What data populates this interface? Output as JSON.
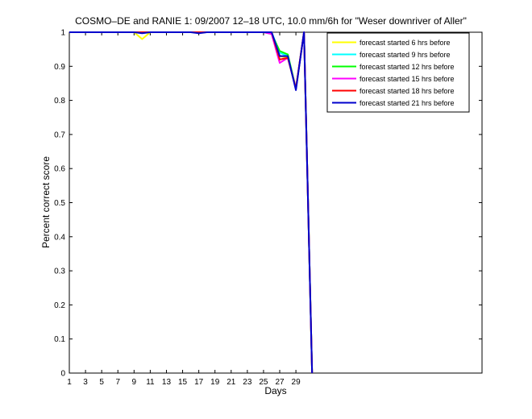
{
  "chart_data": {
    "type": "line",
    "title": "COSMO–DE and RANIE 1: 09/2007 12–18 UTC, 10.0 mm/6h for \"Weser downriver of Aller\"",
    "xlabel": "Days",
    "ylabel": "Percent correct score",
    "xlim": [
      1,
      52
    ],
    "ylim": [
      0,
      1
    ],
    "xticks": [
      1,
      3,
      5,
      7,
      9,
      11,
      13,
      15,
      17,
      19,
      21,
      23,
      25,
      27,
      29
    ],
    "yticks": [
      0,
      0.1,
      0.2,
      0.3,
      0.4,
      0.5,
      0.6,
      0.7,
      0.8,
      0.9,
      1
    ],
    "legend_position": "top-right",
    "grid": false,
    "series": [
      {
        "name": "forecast started 6 hrs before",
        "color": "#ffff00",
        "x": [
          1,
          2,
          3,
          4,
          5,
          6,
          7,
          8,
          9,
          10,
          11,
          12,
          13,
          14,
          15,
          16,
          17,
          18,
          19,
          20,
          21,
          22,
          23,
          24,
          25,
          26,
          27,
          28,
          29,
          30,
          31
        ],
        "y": [
          1,
          1,
          1,
          1,
          1,
          1,
          1,
          1,
          1,
          0.98,
          1,
          1,
          1,
          1,
          1,
          1,
          1,
          1,
          1,
          1,
          1,
          1,
          1,
          1,
          1,
          1,
          0.93,
          0.925,
          0.835,
          1,
          0
        ]
      },
      {
        "name": "forecast started 9 hrs before",
        "color": "#00ffff",
        "x": [
          1,
          2,
          3,
          4,
          5,
          6,
          7,
          8,
          9,
          10,
          11,
          12,
          13,
          14,
          15,
          16,
          17,
          18,
          19,
          20,
          21,
          22,
          23,
          24,
          25,
          26,
          27,
          28,
          29,
          30,
          31
        ],
        "y": [
          1,
          1,
          1,
          1,
          1,
          1,
          1,
          1,
          1,
          1,
          1,
          1,
          1,
          1,
          1,
          1,
          1,
          1,
          1,
          1,
          1,
          1,
          1,
          1,
          1,
          1,
          0.94,
          0.93,
          0.835,
          1,
          0
        ]
      },
      {
        "name": "forecast started 12 hrs before",
        "color": "#00ff00",
        "x": [
          1,
          2,
          3,
          4,
          5,
          6,
          7,
          8,
          9,
          10,
          11,
          12,
          13,
          14,
          15,
          16,
          17,
          18,
          19,
          20,
          21,
          22,
          23,
          24,
          25,
          26,
          27,
          28,
          29,
          30,
          31
        ],
        "y": [
          1,
          1,
          1,
          1,
          1,
          1,
          1,
          1,
          1,
          1,
          1,
          1,
          1,
          1,
          1,
          1,
          1,
          1,
          1,
          1,
          1,
          1,
          1,
          1,
          1,
          0.995,
          0.945,
          0.935,
          0.835,
          1,
          0
        ]
      },
      {
        "name": "forecast started 15 hrs before",
        "color": "#ff00ff",
        "x": [
          1,
          2,
          3,
          4,
          5,
          6,
          7,
          8,
          9,
          10,
          11,
          12,
          13,
          14,
          15,
          16,
          17,
          18,
          19,
          20,
          21,
          22,
          23,
          24,
          25,
          26,
          27,
          28,
          29,
          30,
          31
        ],
        "y": [
          1,
          1,
          1,
          1,
          1,
          1,
          1,
          1,
          1,
          1,
          1,
          1,
          1,
          1,
          1,
          1,
          1,
          1,
          1,
          1,
          1,
          1,
          1,
          1,
          1,
          0.995,
          0.91,
          0.925,
          0.835,
          1,
          0
        ]
      },
      {
        "name": "forecast started 18 hrs before",
        "color": "#ff0000",
        "x": [
          1,
          2,
          3,
          4,
          5,
          6,
          7,
          8,
          9,
          10,
          11,
          12,
          13,
          14,
          15,
          16,
          17,
          18,
          19,
          20,
          21,
          22,
          23,
          24,
          25,
          26,
          27,
          28,
          29,
          30,
          31
        ],
        "y": [
          1,
          1,
          1,
          1,
          1,
          1,
          1,
          1,
          1,
          1,
          1,
          1,
          1,
          1,
          1,
          1,
          1,
          1,
          1,
          1,
          1,
          1,
          1,
          1,
          1,
          1,
          0.92,
          0.925,
          0.835,
          1,
          0
        ]
      },
      {
        "name": "forecast started 21 hrs before",
        "color": "#0000cc",
        "x": [
          1,
          2,
          3,
          4,
          5,
          6,
          7,
          8,
          9,
          10,
          11,
          12,
          13,
          14,
          15,
          16,
          17,
          18,
          19,
          20,
          21,
          22,
          23,
          24,
          25,
          26,
          27,
          28,
          29,
          30,
          31
        ],
        "y": [
          1,
          1,
          1,
          1,
          1,
          1,
          1,
          1,
          1,
          0.997,
          1,
          1,
          1,
          1,
          1,
          1,
          0.997,
          1,
          1,
          1,
          1,
          1,
          1,
          1,
          1,
          1,
          0.93,
          0.93,
          0.83,
          1,
          0
        ]
      }
    ]
  }
}
